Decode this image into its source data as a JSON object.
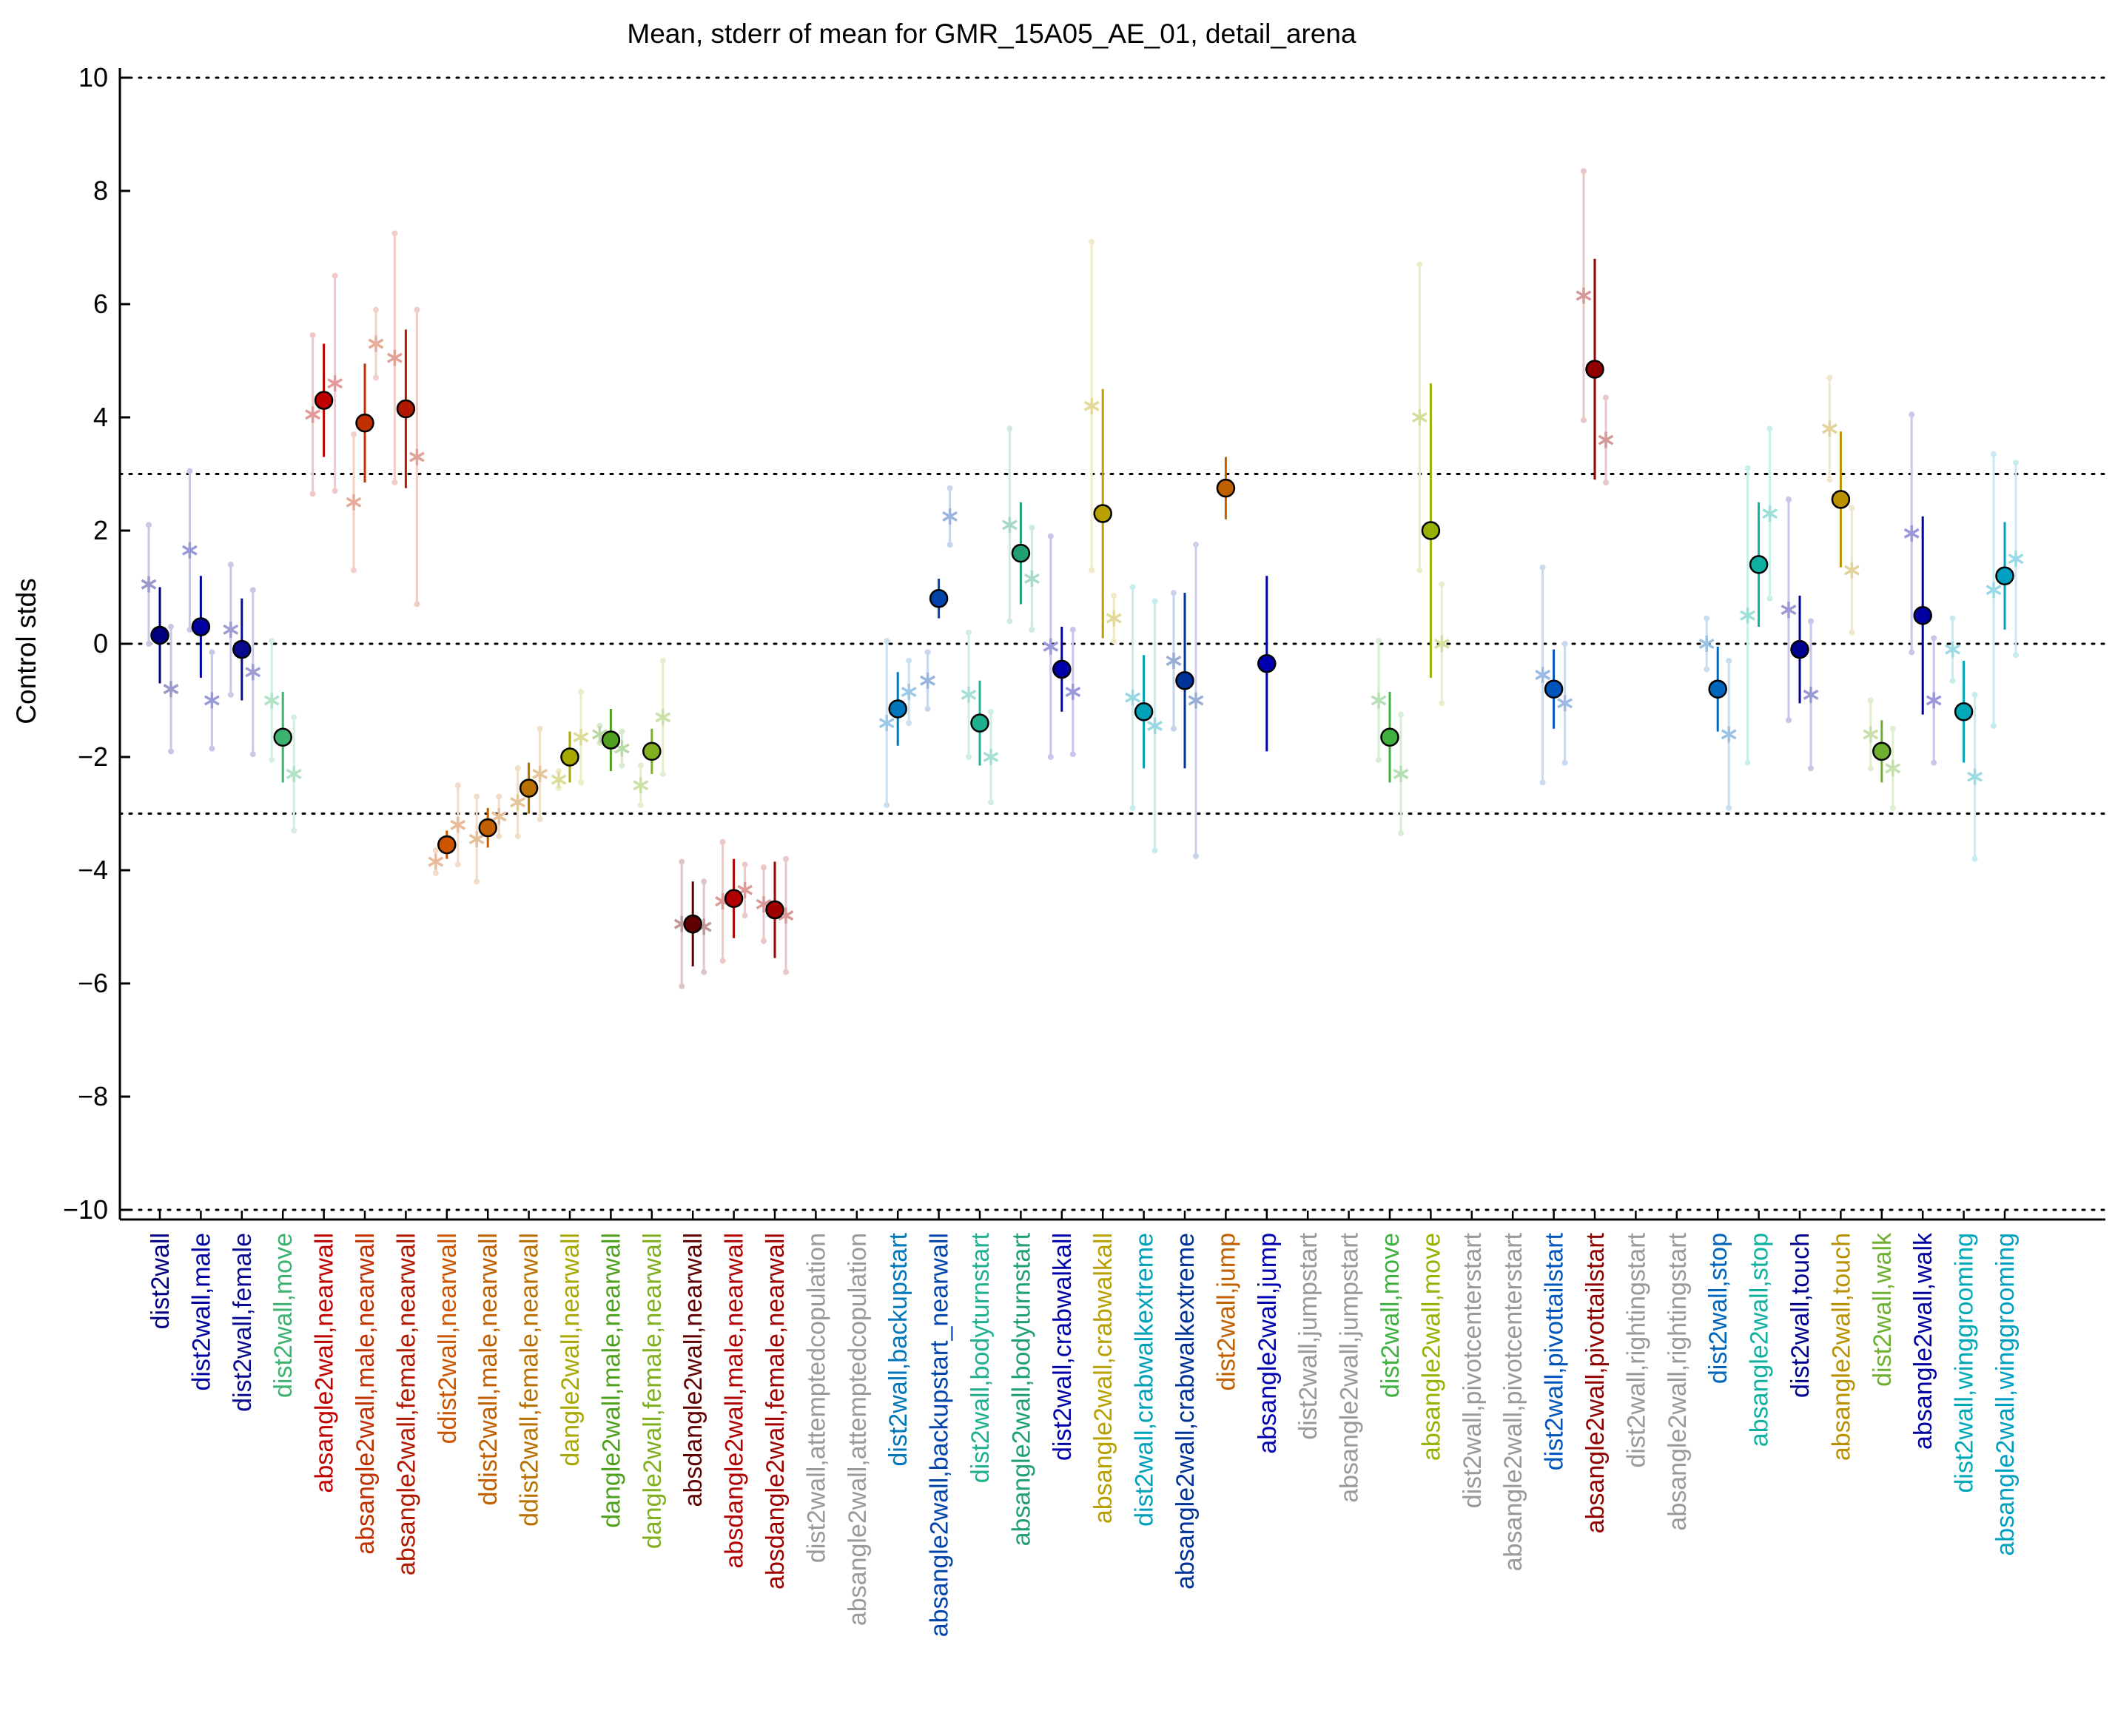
{
  "chart_data": {
    "type": "scatter",
    "title": "Mean, stderr of mean for GMR_15A05_AE_01, detail_arena",
    "xlabel": "",
    "ylabel": "Control stds",
    "ylim": [
      -10.2,
      10.2
    ],
    "yticks": [
      10,
      8,
      6,
      4,
      2,
      0,
      -2,
      -4,
      -6,
      -8,
      -10
    ],
    "reference_lines": [
      10,
      3,
      0,
      -3,
      -10
    ],
    "grid": false,
    "legend": "none",
    "categories": [
      {
        "label": "dist2wall",
        "color": "#000080",
        "mean": 0.15,
        "err": 0.85,
        "sub": [
          1.05,
          -0.8
        ],
        "sub_err": [
          1.05,
          1.1
        ]
      },
      {
        "label": "dist2wall,male",
        "color": "#0000a0",
        "mean": 0.3,
        "err": 0.9,
        "sub": [
          1.65,
          -1.0
        ],
        "sub_err": [
          1.4,
          0.85
        ]
      },
      {
        "label": "dist2wall,female",
        "color": "#0a0a90",
        "mean": -0.1,
        "err": 0.9,
        "sub": [
          0.25,
          -0.5
        ],
        "sub_err": [
          1.15,
          1.45
        ]
      },
      {
        "label": "dist2wall,move",
        "color": "#3cb371",
        "mean": -1.65,
        "err": 0.8,
        "sub": [
          -1.0,
          -2.3
        ],
        "sub_err": [
          1.05,
          1.0
        ]
      },
      {
        "label": "absangle2wall,nearwall",
        "color": "#c00000",
        "mean": 4.3,
        "err": 1.0,
        "sub": [
          4.05,
          4.6
        ],
        "sub_err": [
          1.4,
          1.9
        ]
      },
      {
        "label": "absangle2wall,male,nearwall",
        "color": "#c03000",
        "mean": 3.9,
        "err": 1.05,
        "sub": [
          2.5,
          5.3
        ],
        "sub_err": [
          1.2,
          0.6
        ]
      },
      {
        "label": "absangle2wall,female,nearwall",
        "color": "#b01800",
        "mean": 4.15,
        "err": 1.4,
        "sub": [
          5.05,
          3.3
        ],
        "sub_err": [
          2.2,
          2.6
        ]
      },
      {
        "label": "ddist2wall,nearwall",
        "color": "#cc5500",
        "mean": -3.55,
        "err": 0.25,
        "sub": [
          -3.85,
          -3.2
        ],
        "sub_err": [
          0.2,
          0.7
        ]
      },
      {
        "label": "ddist2wall,male,nearwall",
        "color": "#c06000",
        "mean": -3.25,
        "err": 0.35,
        "sub": [
          -3.45,
          -3.05
        ],
        "sub_err": [
          0.75,
          0.35
        ]
      },
      {
        "label": "ddist2wall,female,nearwall",
        "color": "#b87000",
        "mean": -2.55,
        "err": 0.45,
        "sub": [
          -2.8,
          -2.3
        ],
        "sub_err": [
          0.6,
          0.8
        ]
      },
      {
        "label": "dangle2wall,nearwall",
        "color": "#a8a800",
        "mean": -2.0,
        "err": 0.45,
        "sub": [
          -2.4,
          -1.65
        ],
        "sub_err": [
          0.15,
          0.8
        ]
      },
      {
        "label": "dangle2wall,male,nearwall",
        "color": "#50a020",
        "mean": -1.7,
        "err": 0.55,
        "sub": [
          -1.6,
          -1.85
        ],
        "sub_err": [
          0.15,
          0.3
        ]
      },
      {
        "label": "dangle2wall,female,nearwall",
        "color": "#80b020",
        "mean": -1.9,
        "err": 0.4,
        "sub": [
          -2.5,
          -1.3
        ],
        "sub_err": [
          0.35,
          1.0
        ]
      },
      {
        "label": "absdangle2wall,nearwall",
        "color": "#600000",
        "mean": -4.95,
        "err": 0.75,
        "sub": [
          -4.95,
          -5.0
        ],
        "sub_err": [
          1.1,
          0.8
        ]
      },
      {
        "label": "absdangle2wall,male,nearwall",
        "color": "#b00000",
        "mean": -4.5,
        "err": 0.7,
        "sub": [
          -4.55,
          -4.35
        ],
        "sub_err": [
          1.05,
          0.45
        ]
      },
      {
        "label": "absdangle2wall,female,nearwall",
        "color": "#a00000",
        "mean": -4.7,
        "err": 0.85,
        "sub": [
          -4.6,
          -4.8
        ],
        "sub_err": [
          0.65,
          1.0
        ]
      },
      {
        "label": "dist2wall,attemptedcopulation",
        "color": "#999999",
        "mean": null,
        "err": null,
        "sub": [
          null,
          null
        ],
        "sub_err": [
          null,
          null
        ]
      },
      {
        "label": "absangle2wall,attemptedcopulation",
        "color": "#999999",
        "mean": null,
        "err": null,
        "sub": [
          null,
          null
        ],
        "sub_err": [
          null,
          null
        ]
      },
      {
        "label": "dist2wall,backupstart",
        "color": "#0077bb",
        "mean": -1.15,
        "err": 0.65,
        "sub": [
          -1.4,
          -0.85
        ],
        "sub_err": [
          1.45,
          0.55
        ]
      },
      {
        "label": "absangle2wall,backupstart_nearwall",
        "color": "#0044aa",
        "mean": 0.8,
        "err": 0.35,
        "sub": [
          -0.65,
          2.25
        ],
        "sub_err": [
          0.5,
          0.5
        ]
      },
      {
        "label": "dist2wall,bodyturnstart",
        "color": "#20b090",
        "mean": -1.4,
        "err": 0.75,
        "sub": [
          -0.9,
          -2.0
        ],
        "sub_err": [
          1.1,
          0.8
        ]
      },
      {
        "label": "absangle2wall,bodyturnstart",
        "color": "#20a070",
        "mean": 1.6,
        "err": 0.9,
        "sub": [
          2.1,
          1.15
        ],
        "sub_err": [
          1.7,
          0.9
        ]
      },
      {
        "label": "dist2wall,crabwalkall",
        "color": "#0000aa",
        "mean": -0.45,
        "err": 0.75,
        "sub": [
          -0.05,
          -0.85
        ],
        "sub_err": [
          1.95,
          1.1
        ]
      },
      {
        "label": "absangle2wall,crabwalkall",
        "color": "#b8a000",
        "mean": 2.3,
        "err": 2.2,
        "sub": [
          4.2,
          0.45
        ],
        "sub_err": [
          2.9,
          0.4
        ]
      },
      {
        "label": "dist2wall,crabwalkextreme",
        "color": "#00a0b8",
        "mean": -1.2,
        "err": 1.0,
        "sub": [
          -0.95,
          -1.45
        ],
        "sub_err": [
          1.95,
          2.2
        ]
      },
      {
        "label": "absangle2wall,crabwalkextreme",
        "color": "#003399",
        "mean": -0.65,
        "err": 1.55,
        "sub": [
          -0.3,
          -1.0
        ],
        "sub_err": [
          1.2,
          2.75
        ]
      },
      {
        "label": "dist2wall,jump",
        "color": "#c06000",
        "mean": 2.75,
        "err": 0.55,
        "sub": [
          null,
          null
        ],
        "sub_err": [
          null,
          null
        ]
      },
      {
        "label": "absangle2wall,jump",
        "color": "#0000b0",
        "mean": -0.35,
        "err": 1.55,
        "sub": [
          null,
          null
        ],
        "sub_err": [
          null,
          null
        ]
      },
      {
        "label": "dist2wall,jumpstart",
        "color": "#999999",
        "mean": null,
        "err": null,
        "sub": [
          null,
          null
        ],
        "sub_err": [
          null,
          null
        ]
      },
      {
        "label": "absangle2wall,jumpstart",
        "color": "#999999",
        "mean": null,
        "err": null,
        "sub": [
          null,
          null
        ],
        "sub_err": [
          null,
          null
        ]
      },
      {
        "label": "dist2wall,move",
        "color": "#40b040",
        "mean": -1.65,
        "err": 0.8,
        "sub": [
          -1.0,
          -2.3
        ],
        "sub_err": [
          1.05,
          1.05
        ]
      },
      {
        "label": "absangle2wall,move",
        "color": "#98b000",
        "mean": 2.0,
        "err": 2.6,
        "sub": [
          4.0,
          0.0
        ],
        "sub_err": [
          2.7,
          1.05
        ]
      },
      {
        "label": "dist2wall,pivotcenterstart",
        "color": "#999999",
        "mean": null,
        "err": null,
        "sub": [
          null,
          null
        ],
        "sub_err": [
          null,
          null
        ]
      },
      {
        "label": "absangle2wall,pivotcenterstart",
        "color": "#999999",
        "mean": null,
        "err": null,
        "sub": [
          null,
          null
        ],
        "sub_err": [
          null,
          null
        ]
      },
      {
        "label": "dist2wall,pivottailstart",
        "color": "#0055bb",
        "mean": -0.8,
        "err": 0.7,
        "sub": [
          -0.55,
          -1.05
        ],
        "sub_err": [
          1.9,
          1.05
        ]
      },
      {
        "label": "absangle2wall,pivottailstart",
        "color": "#900000",
        "mean": 4.85,
        "err": 1.95,
        "sub": [
          6.15,
          3.6
        ],
        "sub_err": [
          2.2,
          0.75
        ]
      },
      {
        "label": "dist2wall,rightingstart",
        "color": "#999999",
        "mean": null,
        "err": null,
        "sub": [
          null,
          null
        ],
        "sub_err": [
          null,
          null
        ]
      },
      {
        "label": "absangle2wall,rightingstart",
        "color": "#999999",
        "mean": null,
        "err": null,
        "sub": [
          null,
          null
        ],
        "sub_err": [
          null,
          null
        ]
      },
      {
        "label": "dist2wall,stop",
        "color": "#0066bb",
        "mean": -0.8,
        "err": 0.75,
        "sub": [
          0.0,
          -1.6
        ],
        "sub_err": [
          0.45,
          1.3
        ]
      },
      {
        "label": "absangle2wall,stop",
        "color": "#10b0a0",
        "mean": 1.4,
        "err": 1.1,
        "sub": [
          0.5,
          2.3
        ],
        "sub_err": [
          2.6,
          1.5
        ]
      },
      {
        "label": "dist2wall,touch",
        "color": "#000090",
        "mean": -0.1,
        "err": 0.95,
        "sub": [
          0.6,
          -0.9
        ],
        "sub_err": [
          1.95,
          1.3
        ]
      },
      {
        "label": "absangle2wall,touch",
        "color": "#b89000",
        "mean": 2.55,
        "err": 1.2,
        "sub": [
          3.8,
          1.3
        ],
        "sub_err": [
          0.9,
          1.1
        ]
      },
      {
        "label": "dist2wall,walk",
        "color": "#70b030",
        "mean": -1.9,
        "err": 0.55,
        "sub": [
          -1.6,
          -2.2
        ],
        "sub_err": [
          0.6,
          0.7
        ]
      },
      {
        "label": "absangle2wall,walk",
        "color": "#0000a0",
        "mean": 0.5,
        "err": 1.75,
        "sub": [
          1.95,
          -1.0
        ],
        "sub_err": [
          2.1,
          1.1
        ]
      },
      {
        "label": "dist2wall,winggrooming",
        "color": "#00a8b8",
        "mean": -1.2,
        "err": 0.9,
        "sub": [
          -0.1,
          -2.35
        ],
        "sub_err": [
          0.55,
          1.45
        ]
      },
      {
        "label": "absangle2wall,winggrooming",
        "color": "#00a0c0",
        "mean": 1.2,
        "err": 0.95,
        "sub": [
          0.95,
          1.5
        ],
        "sub_err": [
          2.4,
          1.7
        ]
      }
    ]
  }
}
